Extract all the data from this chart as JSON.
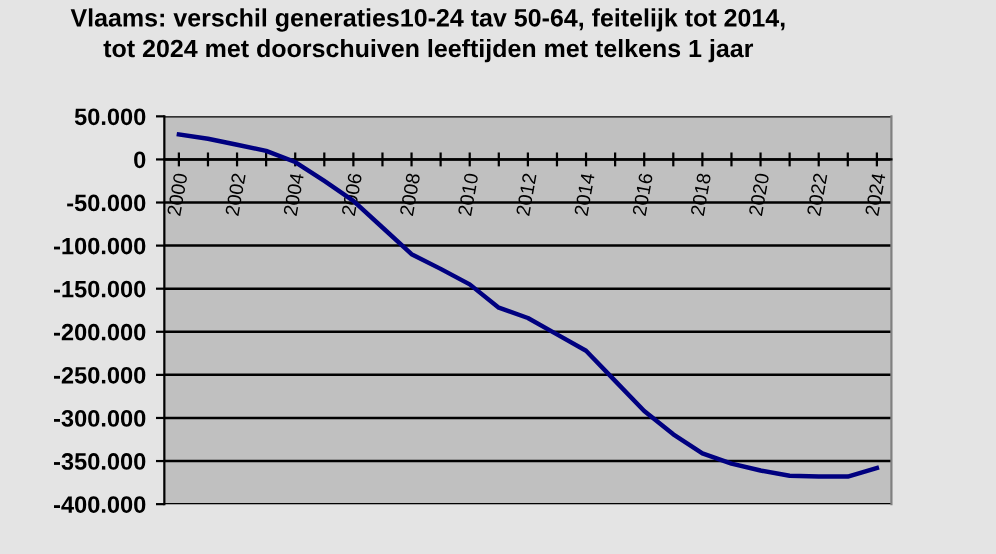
{
  "chart_data": {
    "type": "line",
    "title": "Vlaams: verschil generaties10-24 tav 50-64, feitelijk tot 2014,\ntot 2024 met doorschuiven leeftijden met telkens 1 jaar",
    "categories": [
      "2000",
      null,
      "2002",
      null,
      "2004",
      null,
      "2006",
      null,
      "2008",
      null,
      "2010",
      null,
      "2012",
      null,
      "2014",
      null,
      "2016",
      null,
      "2018",
      null,
      "2020",
      null,
      "2022",
      null,
      "2024"
    ],
    "series": [
      {
        "color": "#000080",
        "values": [
          29000,
          24000,
          17000,
          10000,
          -3000,
          -25000,
          -48000,
          -79000,
          -110000,
          -127000,
          -145000,
          -172000,
          -184000,
          -203000,
          -222000,
          -257000,
          -292000,
          -319000,
          -341000,
          -353000,
          -361000,
          -367000,
          -368000,
          -368000,
          -358000
        ]
      }
    ],
    "ylim": [
      -400000,
      50000
    ],
    "yticks": [
      {
        "value": -400000,
        "label": "-400.000"
      },
      {
        "value": -350000,
        "label": "-350.000"
      },
      {
        "value": -300000,
        "label": "-300.000"
      },
      {
        "value": -250000,
        "label": "-250.000"
      },
      {
        "value": -200000,
        "label": "-200.000"
      },
      {
        "value": -150000,
        "label": "-150.000"
      },
      {
        "value": -100000,
        "label": "-100.000"
      },
      {
        "value": -50000,
        "label": "-50.000"
      },
      0,
      {
        "value": 50000,
        "label": "50.000"
      }
    ],
    "grid": "y",
    "legend": false,
    "marker": "none",
    "line_style": "solid"
  }
}
